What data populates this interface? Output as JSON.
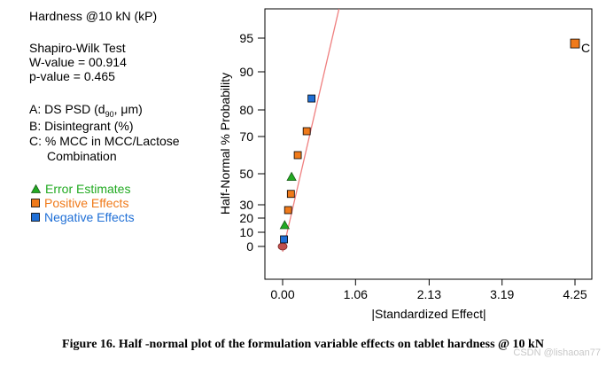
{
  "info": {
    "title": "Hardness @10 kN (kP)",
    "test_name": "Shapiro-Wilk Test",
    "w_value": "W-value = 00.914",
    "p_value": "p-value = 0.465",
    "factor_a": "A: DS PSD (d",
    "factor_a_sub": "90",
    "factor_a_end": ", μm)",
    "factor_b": "B: Disintegrant (%)",
    "factor_c": "C: % MCC in MCC/Lactose",
    "factor_c_cont": "Combination"
  },
  "legend": {
    "items": [
      {
        "label": "Error Estimates",
        "color": "#22aa22",
        "symbol": "triangle"
      },
      {
        "label": "Positive Effects",
        "color": "#f07a1a",
        "symbol": "square"
      },
      {
        "label": "Negative Effects",
        "color": "#1f6fd6",
        "symbol": "square"
      }
    ]
  },
  "colors": {
    "error": "#22aa22",
    "positive": "#f07a1a",
    "negative": "#1f6fd6",
    "zero_point": "#c0504d",
    "fit_line": "#ef7f7f"
  },
  "chart_data": {
    "type": "scatter",
    "title": "",
    "xlabel": "|Standardized Effect|",
    "ylabel": "Half-Normal % Probability",
    "xlim": [
      -0.3,
      4.45
    ],
    "x_ticks": [
      0.0,
      1.06,
      2.13,
      3.19,
      4.25
    ],
    "x_tick_labels": [
      "0.00",
      "1.06",
      "2.13",
      "3.19",
      "4.25"
    ],
    "y_ticks": [
      0,
      10,
      20,
      30,
      50,
      70,
      80,
      90,
      95
    ],
    "y_tick_labels": [
      "0",
      "10",
      "20",
      "30",
      "50",
      "70",
      "80",
      "90",
      "95"
    ],
    "points": [
      {
        "x": 0.0,
        "y": 0.0,
        "type": "zero",
        "label": ""
      },
      {
        "x": 0.02,
        "y": 5,
        "type": "negative",
        "label": ""
      },
      {
        "x": 0.03,
        "y": 15,
        "type": "error",
        "label": ""
      },
      {
        "x": 0.08,
        "y": 26,
        "type": "positive",
        "label": ""
      },
      {
        "x": 0.12,
        "y": 37,
        "type": "positive",
        "label": ""
      },
      {
        "x": 0.13,
        "y": 48,
        "type": "error",
        "label": ""
      },
      {
        "x": 0.22,
        "y": 60,
        "type": "positive",
        "label": ""
      },
      {
        "x": 0.35,
        "y": 72,
        "type": "positive",
        "label": ""
      },
      {
        "x": 0.42,
        "y": 83,
        "type": "negative",
        "label": ""
      },
      {
        "x": 4.25,
        "y": 94.2,
        "type": "positive",
        "label": "C"
      }
    ],
    "fit_line": {
      "x": [
        0.0,
        0.85
      ],
      "y": [
        0,
        100
      ]
    }
  },
  "caption": "Figure 16. Half -normal plot of the formulation variable effects on tablet hardness @ 10 kN",
  "watermark": "CSDN @lishaoan77"
}
